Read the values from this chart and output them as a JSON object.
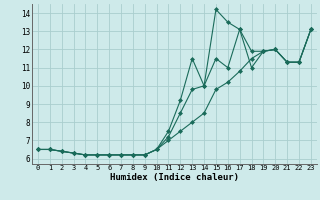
{
  "xlabel": "Humidex (Indice chaleur)",
  "bg_color": "#ceeaea",
  "grid_color": "#aacece",
  "line_color": "#1a6b5a",
  "xlim": [
    -0.5,
    23.5
  ],
  "ylim": [
    5.7,
    14.5
  ],
  "xticks": [
    0,
    1,
    2,
    3,
    4,
    5,
    6,
    7,
    8,
    9,
    10,
    11,
    12,
    13,
    14,
    15,
    16,
    17,
    18,
    19,
    20,
    21,
    22,
    23
  ],
  "yticks": [
    6,
    7,
    8,
    9,
    10,
    11,
    12,
    13,
    14
  ],
  "line1_x": [
    0,
    1,
    2,
    3,
    4,
    5,
    6,
    7,
    8,
    9,
    10,
    11,
    12,
    13,
    14,
    15,
    16,
    17,
    18,
    19,
    20,
    21,
    22,
    23
  ],
  "line1_y": [
    6.5,
    6.5,
    6.4,
    6.3,
    6.2,
    6.2,
    6.2,
    6.2,
    6.2,
    6.2,
    6.5,
    7.0,
    7.5,
    8.0,
    8.5,
    9.8,
    10.2,
    10.8,
    11.5,
    11.9,
    12.0,
    11.3,
    11.3,
    13.1
  ],
  "line2_x": [
    0,
    1,
    2,
    3,
    4,
    5,
    6,
    7,
    8,
    9,
    10,
    11,
    12,
    13,
    14,
    15,
    16,
    17,
    18,
    19,
    20,
    21,
    22,
    23
  ],
  "line2_y": [
    6.5,
    6.5,
    6.4,
    6.3,
    6.2,
    6.2,
    6.2,
    6.2,
    6.2,
    6.2,
    6.5,
    7.2,
    8.5,
    9.8,
    10.0,
    14.2,
    13.5,
    13.1,
    11.0,
    11.9,
    12.0,
    11.3,
    11.3,
    13.1
  ],
  "line3_x": [
    0,
    1,
    2,
    3,
    4,
    5,
    6,
    7,
    8,
    9,
    10,
    11,
    12,
    13,
    14,
    15,
    16,
    17,
    18,
    19,
    20,
    21,
    22,
    23
  ],
  "line3_y": [
    6.5,
    6.5,
    6.4,
    6.3,
    6.2,
    6.2,
    6.2,
    6.2,
    6.2,
    6.2,
    6.5,
    7.5,
    9.2,
    11.5,
    10.0,
    11.5,
    11.0,
    13.1,
    11.9,
    11.9,
    12.0,
    11.3,
    11.3,
    13.1
  ]
}
